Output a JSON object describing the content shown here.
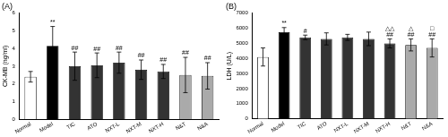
{
  "chart_data": [
    {
      "type": "bar",
      "title": "(A)",
      "y_label": "CK-MB (ng/ml)",
      "categories": [
        "Normal",
        "Model",
        "TIC",
        "ATO",
        "NXT-L",
        "NXT-M",
        "NXT-H",
        "N&T",
        "N&A"
      ],
      "values": [
        2.4,
        4.15,
        3.0,
        3.05,
        3.2,
        2.8,
        2.7,
        2.5,
        2.45
      ],
      "errors": [
        0.3,
        1.1,
        0.8,
        0.7,
        0.6,
        0.55,
        0.4,
        1.0,
        0.75
      ],
      "colors": [
        "#ffffff",
        "#000000",
        "#333333",
        "#333333",
        "#333333",
        "#333333",
        "#333333",
        "#aaaaaa",
        "#aaaaaa"
      ],
      "annotations": [
        null,
        [
          "**"
        ],
        [
          "##"
        ],
        [
          "##"
        ],
        [
          "##"
        ],
        [
          "##"
        ],
        [
          "##"
        ],
        [
          "##"
        ],
        [
          "##"
        ]
      ],
      "ylim": [
        0,
        6
      ],
      "yticks": [
        0,
        1,
        2,
        3,
        4,
        5,
        6
      ],
      "grid": false
    },
    {
      "type": "bar",
      "title": "(B)",
      "y_label": "LDH (U/L)",
      "categories": [
        "Normal",
        "Model",
        "TIC",
        "ATO",
        "NXT-L",
        "NXT-M",
        "NXT-H",
        "N&T",
        "N&A"
      ],
      "values": [
        4100,
        5750,
        5400,
        5300,
        5400,
        5300,
        5000,
        4900,
        4700
      ],
      "errors": [
        600,
        300,
        150,
        400,
        200,
        450,
        300,
        400,
        600
      ],
      "colors": [
        "#ffffff",
        "#000000",
        "#333333",
        "#333333",
        "#333333",
        "#333333",
        "#333333",
        "#aaaaaa",
        "#aaaaaa"
      ],
      "annotations": [
        null,
        [
          "**"
        ],
        [
          "#"
        ],
        null,
        null,
        null,
        [
          "△△",
          "##"
        ],
        [
          "△",
          "##"
        ],
        [
          "□",
          "##"
        ]
      ],
      "ylim": [
        0,
        7000
      ],
      "yticks": [
        0,
        1000,
        2000,
        3000,
        4000,
        5000,
        6000,
        7000
      ],
      "grid": false
    }
  ]
}
